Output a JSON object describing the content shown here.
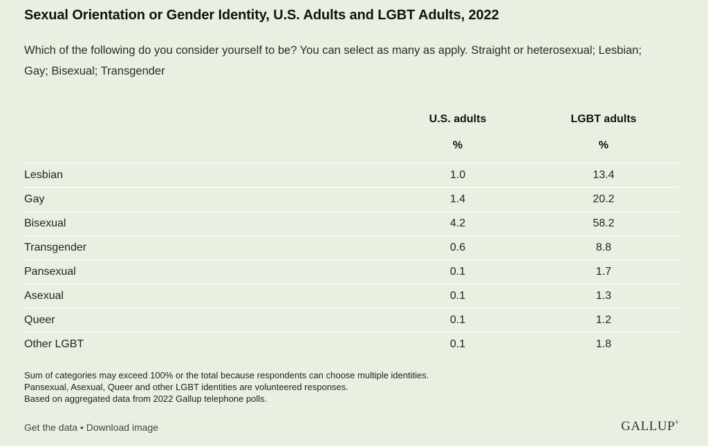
{
  "chart_data": {
    "type": "table",
    "title": "Sexual Orientation or Gender Identity, U.S. Adults and LGBT Adults, 2022",
    "subtitle": "Which of the following do you consider yourself to be? You can select as many as apply. Straight or heterosexual; Lesbian; Gay; Bisexual; Transgender",
    "columns": [
      {
        "name": "U.S. adults",
        "unit": "%"
      },
      {
        "name": "LGBT adults",
        "unit": "%"
      }
    ],
    "rows": [
      {
        "label": "Lesbian",
        "values": [
          "1.0",
          "13.4"
        ]
      },
      {
        "label": "Gay",
        "values": [
          "1.4",
          "20.2"
        ]
      },
      {
        "label": "Bisexual",
        "values": [
          "4.2",
          "58.2"
        ]
      },
      {
        "label": "Transgender",
        "values": [
          "0.6",
          "8.8"
        ]
      },
      {
        "label": "Pansexual",
        "values": [
          "0.1",
          "1.7"
        ]
      },
      {
        "label": "Asexual",
        "values": [
          "0.1",
          "1.3"
        ]
      },
      {
        "label": "Queer",
        "values": [
          "0.1",
          "1.2"
        ]
      },
      {
        "label": "Other LGBT",
        "values": [
          "0.1",
          "1.8"
        ]
      }
    ],
    "notes": [
      "Sum of categories may exceed 100% or the total because respondents can choose multiple identities.",
      "Pansexual, Asexual, Queer and other LGBT identities are volunteered responses.",
      "Based on aggregated data from 2022 Gallup telephone polls."
    ]
  },
  "footer": {
    "get_data": "Get the data",
    "separator": " • ",
    "download": "Download image",
    "logo": "GALLUP",
    "logo_mark": "®"
  },
  "colors": {
    "background": "#e8f0e2",
    "row_divider": "#ffffff"
  }
}
